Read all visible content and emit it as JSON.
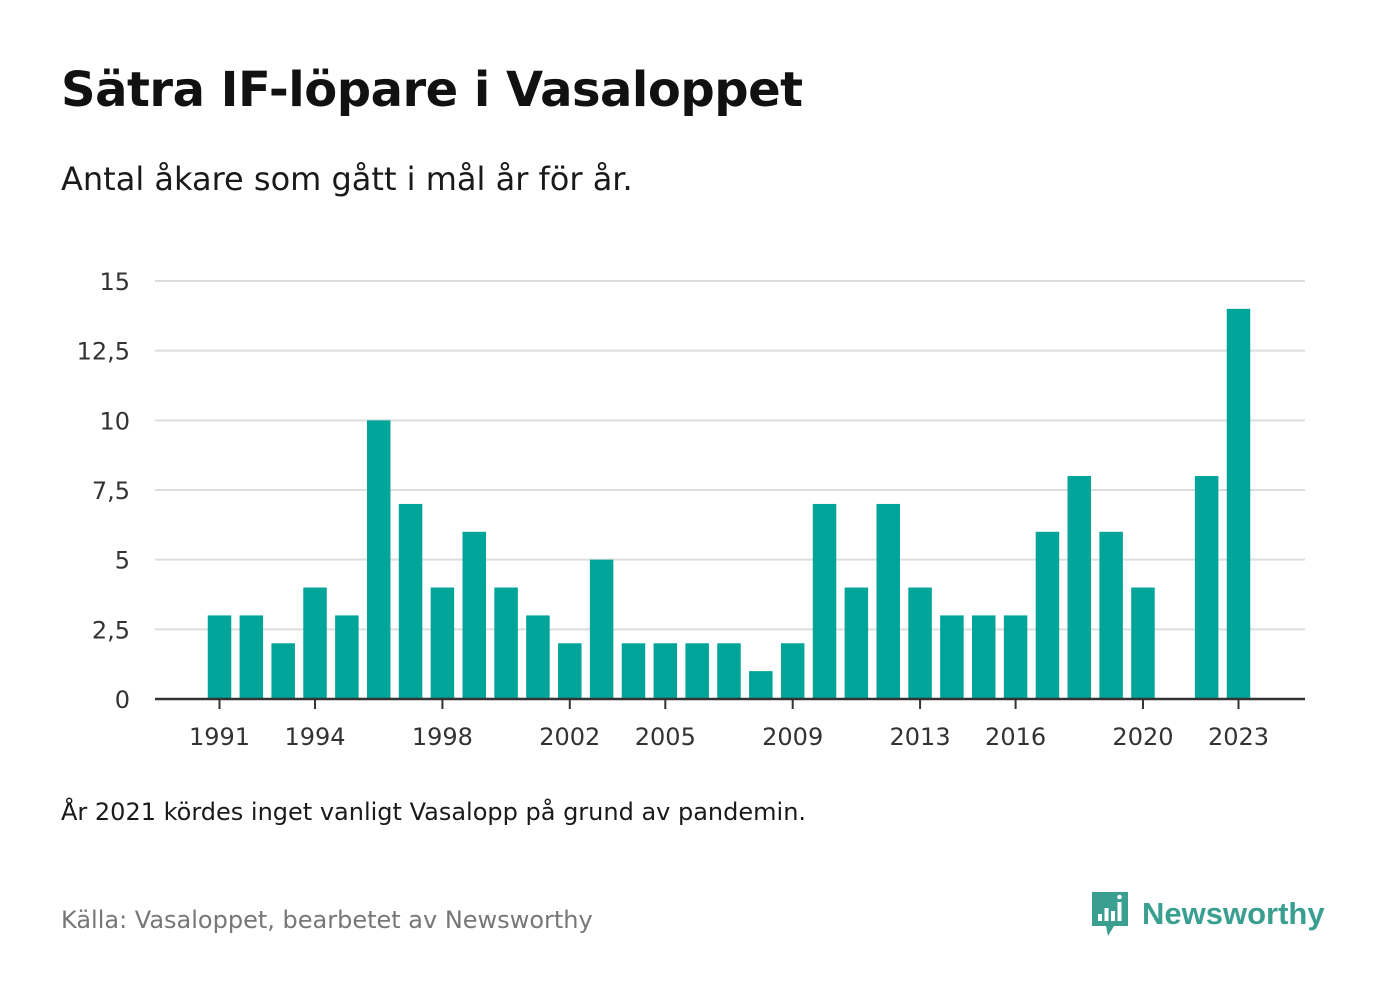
{
  "title": "Sätra IF-löpare i Vasaloppet",
  "subtitle": "Antal åkare som gått i mål år för år.",
  "note": "År 2021 kördes inget vanligt Vasalopp på grund av pandemin.",
  "source": "Källa: Vasaloppet, bearbetet av Newsworthy",
  "brand": {
    "name": "Newsworthy",
    "icon": "newsworthy-logo-icon",
    "color": "#3a9f91"
  },
  "colors": {
    "bar": "#00a59a",
    "grid": "#dddddd",
    "axis": "#333333"
  },
  "chart_data": {
    "type": "bar",
    "title": "Sätra IF-löpare i Vasaloppet",
    "subtitle": "Antal åkare som gått i mål år för år.",
    "xlabel": "",
    "ylabel": "",
    "categories": [
      1991,
      1992,
      1993,
      1994,
      1995,
      1996,
      1997,
      1998,
      1999,
      2000,
      2001,
      2002,
      2003,
      2004,
      2005,
      2006,
      2007,
      2008,
      2009,
      2010,
      2011,
      2012,
      2013,
      2014,
      2015,
      2016,
      2017,
      2018,
      2019,
      2020,
      2021,
      2022,
      2023
    ],
    "values": [
      3,
      3,
      2,
      4,
      3,
      10,
      7,
      4,
      6,
      4,
      3,
      2,
      5,
      2,
      2,
      2,
      2,
      1,
      2,
      7,
      4,
      7,
      4,
      3,
      3,
      3,
      6,
      8,
      6,
      4,
      null,
      8,
      14
    ],
    "x_tick_labels": [
      "1991",
      "1994",
      "1998",
      "2002",
      "2005",
      "2009",
      "2013",
      "2016",
      "2020",
      "2023"
    ],
    "y_ticks": [
      0,
      2.5,
      5,
      7.5,
      10,
      12.5,
      15
    ],
    "y_tick_labels": [
      "0",
      "2,5",
      "5",
      "7,5",
      "10",
      "12,5",
      "15"
    ],
    "ylim": [
      0,
      15
    ],
    "grid": "horizontal",
    "legend": "none"
  }
}
